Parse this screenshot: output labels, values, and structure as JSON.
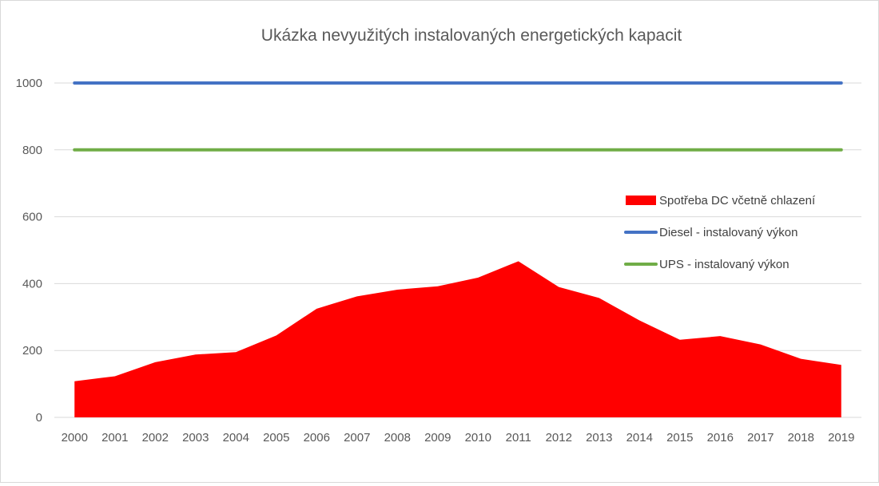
{
  "chart_data": {
    "type": "area",
    "title": "Ukázka nevyužitých instalovaných energetických kapacit",
    "xlabel": "",
    "ylabel": "",
    "categories": [
      "2000",
      "2001",
      "2002",
      "2003",
      "2004",
      "2005",
      "2006",
      "2007",
      "2008",
      "2009",
      "2010",
      "2011",
      "2012",
      "2013",
      "2014",
      "2015",
      "2016",
      "2017",
      "2018",
      "2019"
    ],
    "ylim": [
      0,
      1000
    ],
    "yticks": [
      0,
      200,
      400,
      600,
      800,
      1000
    ],
    "grid": true,
    "legend_position": "right",
    "series": [
      {
        "name": "Spotřeba DC včetně chlazení",
        "type": "area",
        "color": "#ff0000",
        "values": [
          108,
          123,
          165,
          188,
          195,
          245,
          325,
          362,
          382,
          392,
          418,
          467,
          390,
          357,
          290,
          232,
          243,
          218,
          175,
          157
        ]
      },
      {
        "name": "Diesel - instalovaný výkon",
        "type": "line",
        "color": "#4472c4",
        "values": [
          1000,
          1000,
          1000,
          1000,
          1000,
          1000,
          1000,
          1000,
          1000,
          1000,
          1000,
          1000,
          1000,
          1000,
          1000,
          1000,
          1000,
          1000,
          1000,
          1000
        ]
      },
      {
        "name": "UPS - instalovaný výkon",
        "type": "line",
        "color": "#70ad47",
        "values": [
          800,
          800,
          800,
          800,
          800,
          800,
          800,
          800,
          800,
          800,
          800,
          800,
          800,
          800,
          800,
          800,
          800,
          800,
          800,
          800
        ]
      }
    ]
  }
}
